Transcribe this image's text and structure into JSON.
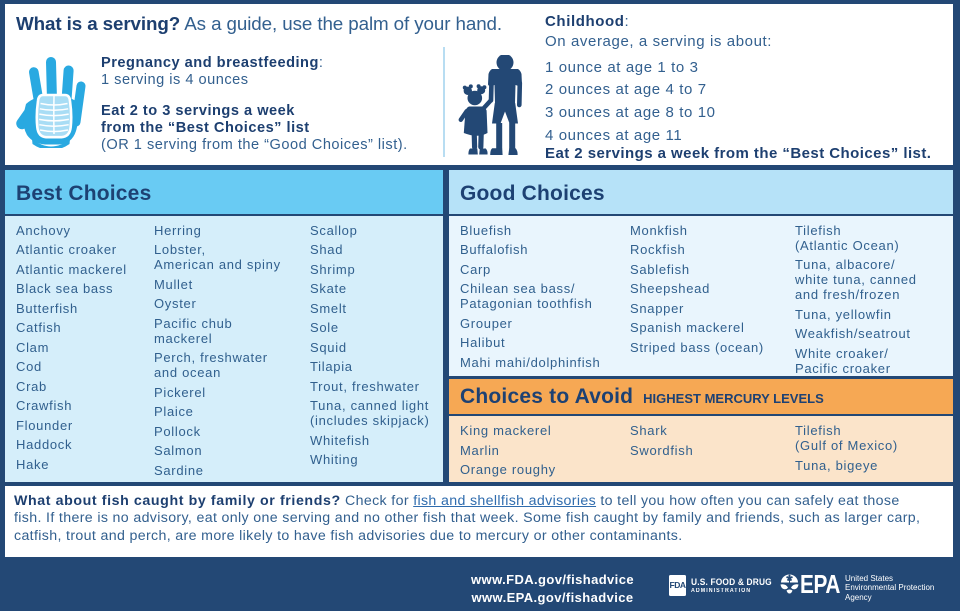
{
  "serving": {
    "title_bold": "What is a serving?",
    "title_rest": " As a guide, use the palm of your hand.",
    "pregnancy": {
      "heading_bold": "Pregnancy and breastfeeding",
      "heading_colon": ":",
      "serving_size": "1 serving is 4 ounces",
      "advice_line1": "Eat 2 to 3 servings a week",
      "advice_line2": "from the “Best Choices” list",
      "advice_note": "(OR 1 serving from the “Good Choices” list)."
    },
    "childhood": {
      "heading_bold": "Childhood",
      "heading_colon": ":",
      "subheading": "On average, a serving is about:",
      "servings": [
        "1 ounce at age 1 to 3",
        "2 ounces at age 4 to 7",
        "3 ounces at age 8 to 10",
        "4 ounces at age 11"
      ],
      "advice": "Eat 2 servings a week from the “Best Choices” list."
    }
  },
  "best_choices": {
    "title": "Best Choices",
    "columns": [
      [
        "Anchovy",
        "Atlantic croaker",
        "Atlantic mackerel",
        "Black sea bass",
        "Butterfish",
        "Catfish",
        "Clam",
        "Cod",
        "Crab",
        "Crawfish",
        "Flounder",
        "Haddock",
        "Hake"
      ],
      [
        "Herring",
        "Lobster,\nAmerican and spiny",
        "Mullet",
        "Oyster",
        "Pacific chub\nmackerel",
        "Perch, freshwater\nand ocean",
        "Pickerel",
        "Plaice",
        "Pollock",
        "Salmon",
        "Sardine"
      ],
      [
        "Scallop",
        "Shad",
        "Shrimp",
        "Skate",
        "Smelt",
        "Sole",
        "Squid",
        "Tilapia",
        "Trout, freshwater",
        "Tuna, canned light\n(includes skipjack)",
        "Whitefish",
        "Whiting"
      ]
    ]
  },
  "good_choices": {
    "title": "Good Choices",
    "columns": [
      [
        "Bluefish",
        "Buffalofish",
        "Carp",
        "Chilean sea bass/\nPatagonian toothfish",
        "Grouper",
        "Halibut",
        "Mahi mahi/dolphinfish"
      ],
      [
        "Monkfish",
        "Rockfish",
        "Sablefish",
        "Sheepshead",
        "Snapper",
        "Spanish mackerel",
        "Striped bass (ocean)"
      ],
      [
        "Tilefish\n(Atlantic Ocean)",
        "Tuna, albacore/\nwhite tuna, canned\nand fresh/frozen",
        "Tuna, yellowfin",
        "Weakfish/seatrout",
        "White croaker/\nPacific croaker"
      ]
    ]
  },
  "avoid": {
    "title": "Choices to Avoid",
    "subtitle": "HIGHEST MERCURY LEVELS",
    "columns": [
      [
        "King mackerel",
        "Marlin",
        "Orange roughy"
      ],
      [
        "Shark",
        "Swordfish"
      ],
      [
        "Tilefish\n(Gulf of Mexico)",
        "Tuna, bigeye"
      ]
    ]
  },
  "qa": {
    "question_bold": "What about fish caught by family or friends?",
    "pre_link": " Check for ",
    "link_text": "fish and shellfish advisories",
    "post_link": " to tell you how often you can safely eat those fish. If there is no advisory, eat only one serving and no other fish that week. Some fish caught by family and friends, such as larger carp, catfish, trout and perch, are more likely to have fish advisories due to mercury or other contaminants."
  },
  "footer": {
    "url_fda": "www.FDA.gov/fishadvice",
    "url_epa": "www.EPA.gov/fishadvice",
    "fda_logo": {
      "abbr": "FDA",
      "name": "U.S. FOOD & DRUG",
      "sub": "ADMINISTRATION"
    },
    "epa_logo": {
      "abbr": "EPA",
      "line1": "United States",
      "line2": "Environmental Protection",
      "line3": "Agency"
    }
  }
}
